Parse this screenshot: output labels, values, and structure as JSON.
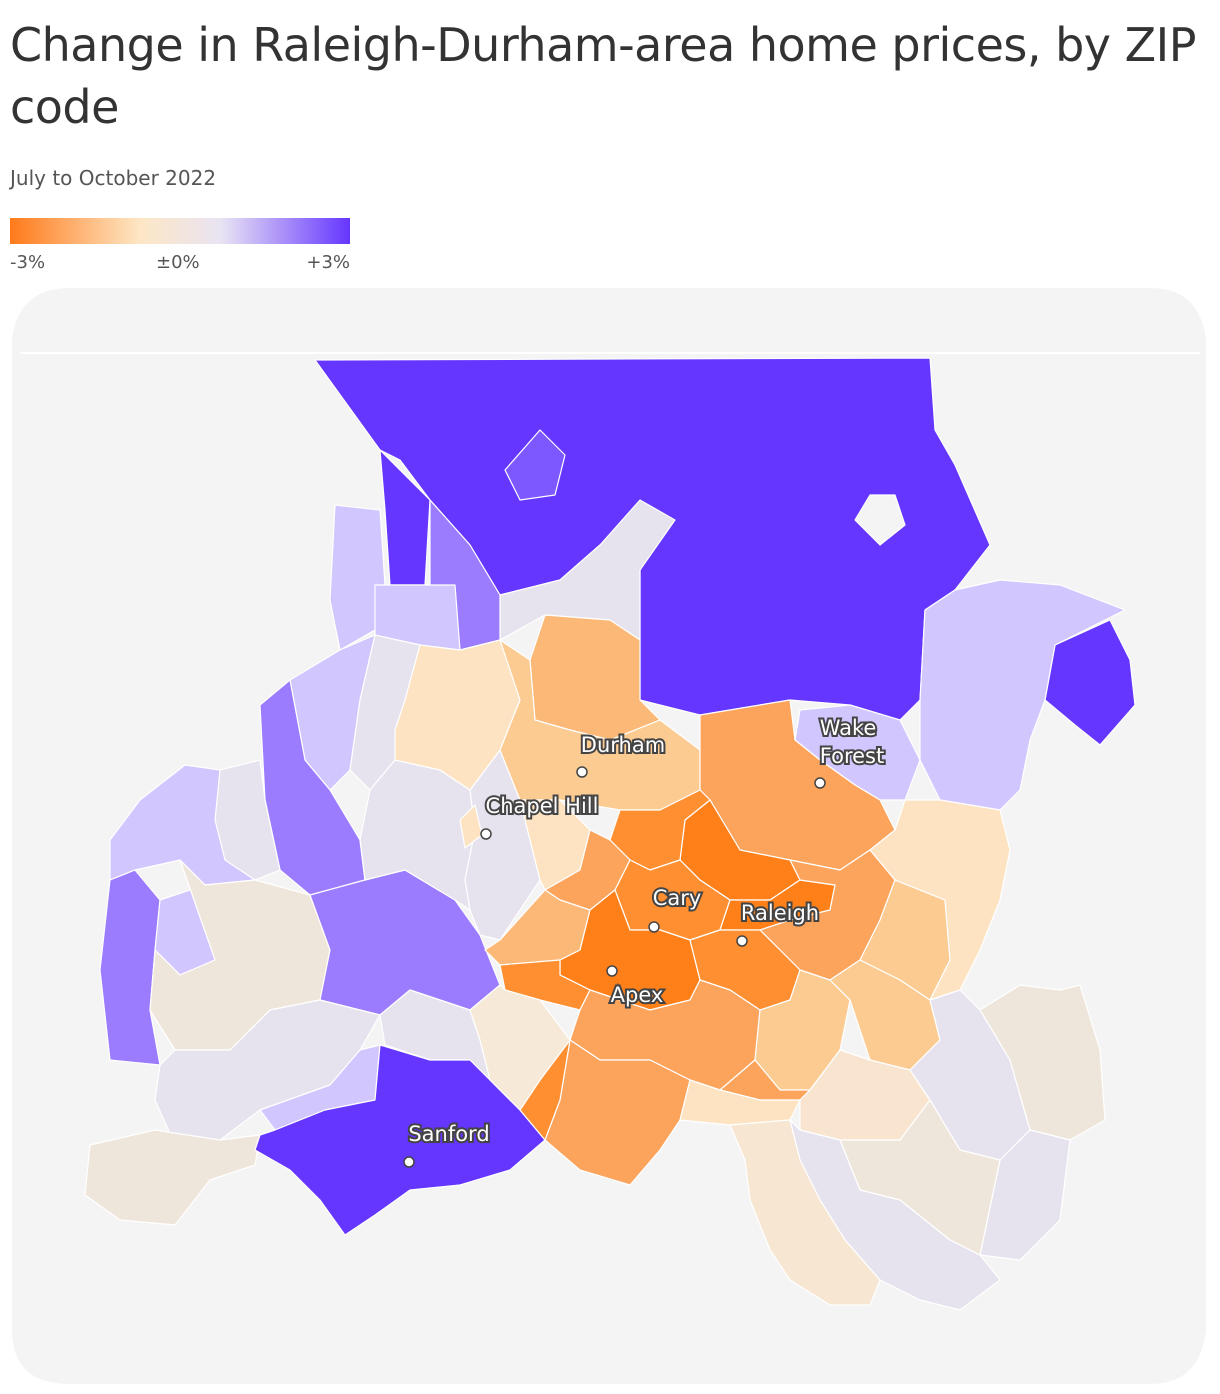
{
  "header": {
    "title": "Change in Raleigh-Durham-area home prices, by ZIP code",
    "subtitle": "July to October 2022"
  },
  "legend": {
    "labels": [
      "-3%",
      "±0%",
      "+3%"
    ],
    "colors": [
      "#ff7a1a",
      "#fde6c4",
      "#e9e4f3",
      "#6536ff"
    ],
    "range_percent": [
      -3,
      3
    ]
  },
  "map": {
    "background_color": "#f4f4f4",
    "divisions": "ZIP code",
    "cities": [
      "Durham",
      "Wake Forest",
      "Chapel Hill",
      "Cary",
      "Raleigh",
      "Apex",
      "Sanford"
    ],
    "color_scale": {
      "strong_increase": "#6536ff",
      "increase": "#9b7cff",
      "slight_increase": "#d2c6ff",
      "near_zero": "#e6e3ee",
      "slight_decrease": "#fde3c2",
      "decrease": "#fcb877",
      "strong_decrease": "#ff8019"
    }
  }
}
